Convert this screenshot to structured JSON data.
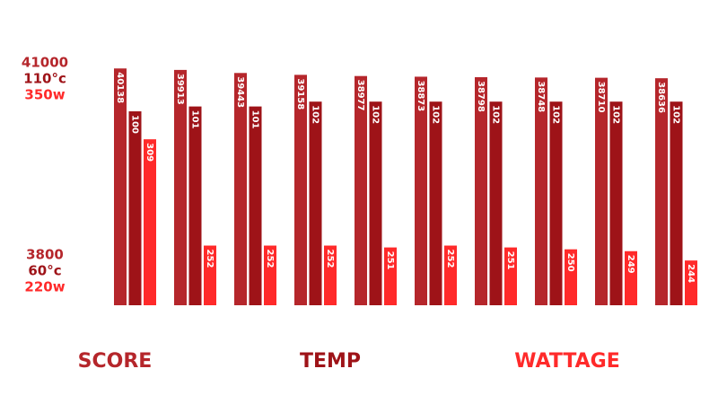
{
  "chart_data": {
    "type": "bar",
    "categories": [
      null,
      null,
      null,
      null,
      null,
      null,
      null,
      null,
      null,
      null
    ],
    "series": [
      {
        "name": "SCORE",
        "color": "#b5262b",
        "values": [
          40138,
          39913,
          39443,
          39158,
          38977,
          38873,
          38798,
          38748,
          38710,
          38636
        ],
        "ylim": [
          3800,
          41000
        ],
        "yticks": [
          3800,
          41000
        ]
      },
      {
        "name": "TEMP",
        "color": "#9e1318",
        "values": [
          100,
          101,
          101,
          102,
          102,
          102,
          102,
          102,
          102,
          102
        ],
        "ylim": [
          60,
          110
        ],
        "yticks": [
          {
            "value": 60,
            "label": "60°c"
          },
          {
            "value": 110,
            "label": "110°c"
          }
        ]
      },
      {
        "name": "WATTAGE",
        "color": "#ff2a2a",
        "values": [
          309,
          252,
          252,
          252,
          251,
          252,
          251,
          250,
          249,
          244
        ],
        "ylim": [
          220,
          350
        ],
        "yticks": [
          {
            "value": 220,
            "label": "220w"
          },
          {
            "value": 350,
            "label": "350w"
          }
        ]
      }
    ]
  }
}
